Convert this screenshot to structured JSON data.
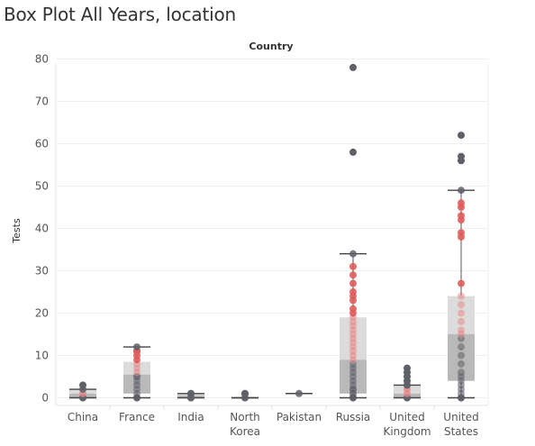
{
  "title": "Box Plot All Years, location",
  "chart_data": {
    "type": "box",
    "column_header": "Country",
    "ylabel": "Tests",
    "ylim": [
      -2,
      82
    ],
    "yticks": [
      0,
      10,
      20,
      30,
      40,
      50,
      60,
      70,
      80
    ],
    "grid": true,
    "colors": {
      "outer_point": "#5f6068",
      "inner_point": "#e8888b",
      "hot_point": "#e05c5c",
      "box_upper": "#dcdcdc",
      "box_lower": "#b9b9b9",
      "whisker": "#444444"
    },
    "categories": [
      {
        "label": [
          "China"
        ],
        "stats": {
          "min": 0,
          "q1": 0,
          "median": 1,
          "q3": 2,
          "max": 2
        },
        "points": [
          0,
          0,
          1,
          1,
          2,
          3
        ]
      },
      {
        "label": [
          "France"
        ],
        "stats": {
          "min": 0,
          "q1": 1,
          "median": 5.5,
          "q3": 8.5,
          "max": 12
        },
        "points": [
          0,
          0,
          1,
          2,
          3,
          4,
          5,
          5,
          6,
          7,
          8,
          9,
          10,
          11,
          11,
          12
        ]
      },
      {
        "label": [
          "India"
        ],
        "stats": {
          "min": 0,
          "q1": 0,
          "median": 0.5,
          "q3": 1,
          "max": 1
        },
        "points": [
          0,
          0,
          1,
          1
        ]
      },
      {
        "label": [
          "North",
          "Korea"
        ],
        "stats": {
          "min": 0,
          "q1": 0,
          "median": 0,
          "q3": 0,
          "max": 0
        },
        "points": [
          0,
          0,
          1,
          1
        ]
      },
      {
        "label": [
          "Pakistan"
        ],
        "stats": {
          "min": 1,
          "q1": 1,
          "median": 1,
          "q3": 1,
          "max": 1
        },
        "points": [
          1
        ]
      },
      {
        "label": [
          "Russia"
        ],
        "stats": {
          "min": 0,
          "q1": 1,
          "median": 9,
          "q3": 19,
          "max": 34
        },
        "points": [
          0,
          0,
          1,
          1,
          2,
          2,
          3,
          4,
          5,
          6,
          7,
          8,
          9,
          10,
          11,
          12,
          13,
          14,
          15,
          16,
          17,
          18,
          19,
          20,
          21,
          23,
          24,
          25,
          27,
          29,
          31,
          34,
          58,
          78
        ]
      },
      {
        "label": [
          "United",
          "Kingdom"
        ],
        "stats": {
          "min": 0,
          "q1": 0,
          "median": 1,
          "q3": 3,
          "max": 3
        },
        "points": [
          0,
          0,
          1,
          1,
          2,
          2,
          3,
          3,
          4,
          5,
          6,
          7
        ]
      },
      {
        "label": [
          "United",
          "States"
        ],
        "stats": {
          "min": 0,
          "q1": 4,
          "median": 15,
          "q3": 24,
          "max": 49
        },
        "points": [
          0,
          0,
          1,
          2,
          3,
          4,
          5,
          6,
          8,
          10,
          12,
          14,
          15,
          16,
          18,
          20,
          22,
          24,
          27,
          38,
          39,
          42,
          43,
          45,
          46,
          49,
          56,
          57,
          62
        ]
      }
    ]
  }
}
